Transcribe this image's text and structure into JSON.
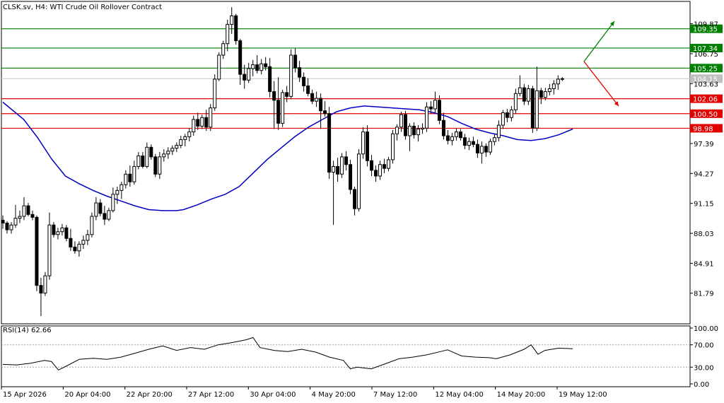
{
  "title": "CLSK.sv, H4:  WTI Crude Oil Rollover Contract",
  "colors": {
    "up_line": "#007f00",
    "down_line": "#e00000",
    "ma": "#0000c0",
    "candle": "#000000",
    "rsi": "#000000",
    "current_price_bg": "#c0c0c0"
  },
  "price_axis": {
    "min": 78.6,
    "max": 112.2,
    "ticks": [
      "109.87",
      "106.75",
      "103.63",
      "97.39",
      "94.27",
      "91.15",
      "88.03",
      "84.91",
      "81.79"
    ],
    "tick_values": [
      109.87,
      106.75,
      103.63,
      97.39,
      94.27,
      91.15,
      88.03,
      84.91,
      81.79
    ]
  },
  "levels": {
    "green": [
      {
        "label": "109.35",
        "value": 109.35
      },
      {
        "label": "107.34",
        "value": 107.34
      },
      {
        "label": "105.25",
        "value": 105.25
      }
    ],
    "red": [
      {
        "label": "102.06",
        "value": 102.06
      },
      {
        "label": "100.50",
        "value": 100.5
      },
      {
        "label": "98.98",
        "value": 98.98
      }
    ],
    "current": {
      "label": "104.15",
      "value": 104.15
    }
  },
  "rsi": {
    "label": "RSI(14) 62.66",
    "ticks": [
      "100.00",
      "70.00",
      "30.00",
      "0.00"
    ],
    "tick_values": [
      100,
      70,
      30,
      0
    ]
  },
  "x_labels": [
    "15 Apr 2026",
    "20 Apr 04:00",
    "22 Apr 20:00",
    "27 Apr 12:00",
    "30 Apr 04:00",
    "4 May 20:00",
    "7 May 12:00",
    "12 May 04:00",
    "14 May 20:00",
    "19 May 12:00"
  ],
  "chart_data": {
    "type": "candlestick",
    "symbol": "CLSK.sv",
    "timeframe": "H4",
    "candles": [
      [
        89.4,
        89.9,
        88.5,
        89.1
      ],
      [
        89.1,
        89.3,
        88.0,
        88.4
      ],
      [
        88.4,
        89.2,
        88.0,
        88.9
      ],
      [
        88.9,
        91.0,
        88.6,
        89.6
      ],
      [
        89.6,
        90.4,
        89.1,
        89.8
      ],
      [
        89.8,
        91.8,
        89.4,
        90.9
      ],
      [
        90.9,
        91.2,
        89.8,
        90.0
      ],
      [
        90.0,
        90.4,
        89.4,
        89.7
      ],
      [
        89.7,
        89.9,
        82.0,
        82.6
      ],
      [
        82.6,
        83.4,
        79.4,
        81.8
      ],
      [
        81.8,
        84.0,
        81.5,
        83.6
      ],
      [
        83.6,
        90.2,
        83.2,
        88.9
      ],
      [
        88.9,
        89.2,
        87.6,
        87.9
      ],
      [
        87.9,
        88.6,
        87.4,
        88.2
      ],
      [
        88.2,
        89.0,
        87.8,
        88.6
      ],
      [
        88.6,
        88.9,
        87.2,
        87.5
      ],
      [
        87.5,
        88.5,
        86.2,
        86.6
      ],
      [
        86.6,
        87.2,
        85.9,
        86.2
      ],
      [
        86.2,
        87.2,
        85.6,
        86.9
      ],
      [
        86.9,
        87.8,
        86.4,
        87.3
      ],
      [
        87.3,
        88.4,
        86.8,
        87.9
      ],
      [
        87.9,
        90.2,
        87.6,
        89.8
      ],
      [
        89.8,
        91.8,
        89.4,
        91.2
      ],
      [
        91.2,
        91.6,
        89.8,
        90.1
      ],
      [
        90.1,
        90.9,
        88.9,
        89.5
      ],
      [
        89.5,
        90.7,
        89.3,
        90.4
      ],
      [
        90.4,
        92.8,
        90.2,
        92.1
      ],
      [
        92.1,
        92.9,
        91.1,
        92.5
      ],
      [
        92.5,
        93.4,
        91.6,
        93.1
      ],
      [
        93.1,
        94.6,
        92.7,
        94.2
      ],
      [
        94.2,
        95.1,
        92.9,
        93.4
      ],
      [
        93.4,
        95.6,
        93.1,
        95.0
      ],
      [
        95.0,
        96.5,
        94.7,
        96.1
      ],
      [
        96.1,
        96.5,
        94.8,
        95.0
      ],
      [
        95.0,
        97.5,
        94.8,
        97.0
      ],
      [
        97.0,
        97.3,
        95.7,
        96.0
      ],
      [
        96.0,
        96.3,
        93.9,
        94.2
      ],
      [
        94.2,
        96.5,
        93.7,
        96.0
      ],
      [
        96.0,
        96.8,
        95.5,
        96.3
      ],
      [
        96.3,
        97.0,
        95.8,
        96.6
      ],
      [
        96.6,
        97.2,
        96.2,
        96.9
      ],
      [
        96.9,
        97.5,
        96.5,
        97.2
      ],
      [
        97.2,
        98.2,
        96.9,
        97.8
      ],
      [
        97.8,
        98.4,
        97.1,
        98.1
      ],
      [
        98.1,
        99.0,
        97.6,
        98.6
      ],
      [
        98.6,
        100.3,
        98.2,
        99.9
      ],
      [
        99.9,
        100.6,
        98.8,
        99.2
      ],
      [
        99.2,
        100.4,
        98.9,
        100.1
      ],
      [
        100.1,
        100.9,
        98.7,
        99.1
      ],
      [
        99.1,
        101.5,
        98.7,
        101.1
      ],
      [
        101.1,
        104.6,
        100.8,
        104.1
      ],
      [
        104.1,
        106.9,
        103.9,
        106.6
      ],
      [
        106.6,
        108.1,
        106.2,
        107.8
      ],
      [
        107.8,
        110.3,
        107.0,
        109.8
      ],
      [
        109.8,
        111.6,
        108.8,
        110.7
      ],
      [
        110.7,
        110.9,
        107.7,
        108.1
      ],
      [
        108.1,
        108.3,
        103.5,
        104.6
      ],
      [
        104.6,
        105.6,
        103.1,
        104.0
      ],
      [
        104.0,
        105.8,
        103.7,
        105.2
      ],
      [
        105.2,
        106.1,
        104.4,
        105.6
      ],
      [
        105.6,
        106.6,
        104.7,
        105.0
      ],
      [
        105.0,
        106.2,
        104.6,
        105.7
      ],
      [
        105.7,
        106.4,
        105.0,
        105.4
      ],
      [
        105.4,
        106.3,
        102.2,
        102.8
      ],
      [
        102.8,
        103.9,
        98.9,
        101.9
      ],
      [
        101.9,
        104.3,
        98.8,
        99.5
      ],
      [
        99.5,
        103.0,
        99.1,
        102.7
      ],
      [
        102.7,
        103.4,
        101.7,
        102.3
      ],
      [
        102.3,
        107.2,
        102.0,
        106.6
      ],
      [
        106.6,
        107.3,
        104.8,
        105.3
      ],
      [
        105.3,
        106.0,
        103.8,
        104.3
      ],
      [
        104.3,
        104.8,
        102.8,
        103.4
      ],
      [
        103.4,
        104.2,
        102.3,
        102.6
      ],
      [
        102.6,
        103.0,
        101.5,
        101.8
      ],
      [
        101.8,
        102.8,
        101.2,
        102.1
      ],
      [
        102.1,
        102.6,
        98.9,
        100.8
      ],
      [
        100.8,
        101.8,
        100.2,
        100.5
      ],
      [
        100.5,
        101.2,
        93.7,
        94.4
      ],
      [
        94.4,
        95.6,
        88.9,
        95.0
      ],
      [
        95.0,
        95.9,
        93.4,
        94.2
      ],
      [
        94.2,
        96.4,
        93.8,
        96.0
      ],
      [
        96.0,
        96.6,
        94.6,
        95.2
      ],
      [
        95.2,
        95.7,
        92.1,
        92.6
      ],
      [
        92.6,
        92.9,
        89.9,
        90.6
      ],
      [
        90.6,
        96.8,
        90.3,
        96.3
      ],
      [
        96.3,
        99.1,
        95.8,
        98.6
      ],
      [
        98.6,
        99.3,
        95.0,
        95.6
      ],
      [
        95.6,
        96.2,
        94.0,
        94.6
      ],
      [
        94.6,
        95.1,
        93.4,
        94.0
      ],
      [
        94.0,
        95.6,
        93.6,
        95.2
      ],
      [
        95.2,
        95.8,
        94.3,
        94.8
      ],
      [
        94.8,
        96.0,
        94.5,
        95.7
      ],
      [
        95.7,
        98.8,
        95.3,
        98.4
      ],
      [
        98.4,
        99.4,
        97.7,
        99.1
      ],
      [
        99.1,
        100.7,
        98.6,
        100.4
      ],
      [
        100.4,
        100.8,
        97.8,
        98.2
      ],
      [
        98.2,
        99.5,
        96.6,
        99.2
      ],
      [
        99.2,
        99.6,
        97.9,
        98.3
      ],
      [
        98.3,
        99.3,
        97.6,
        98.9
      ],
      [
        98.9,
        99.5,
        98.4,
        99.0
      ],
      [
        99.0,
        101.7,
        98.6,
        101.2
      ],
      [
        101.2,
        101.8,
        100.5,
        101.0
      ],
      [
        101.0,
        102.8,
        100.6,
        101.9
      ],
      [
        101.9,
        102.4,
        99.4,
        99.8
      ],
      [
        99.8,
        100.6,
        97.8,
        98.2
      ],
      [
        98.2,
        98.8,
        97.3,
        97.7
      ],
      [
        97.7,
        98.5,
        97.2,
        98.1
      ],
      [
        98.1,
        99.0,
        97.7,
        98.6
      ],
      [
        98.6,
        98.9,
        97.7,
        98.0
      ],
      [
        98.0,
        98.4,
        96.8,
        97.2
      ],
      [
        97.2,
        98.0,
        96.7,
        97.6
      ],
      [
        97.6,
        98.1,
        97.0,
        97.3
      ],
      [
        97.3,
        97.8,
        95.9,
        96.4
      ],
      [
        96.4,
        97.6,
        95.3,
        97.1
      ],
      [
        97.1,
        97.4,
        96.0,
        96.5
      ],
      [
        96.5,
        97.9,
        96.2,
        97.6
      ],
      [
        97.6,
        98.4,
        97.2,
        98.0
      ],
      [
        98.0,
        99.8,
        97.6,
        99.3
      ],
      [
        99.3,
        100.9,
        98.9,
        100.6
      ],
      [
        100.6,
        101.0,
        99.6,
        100.1
      ],
      [
        100.1,
        101.3,
        99.7,
        100.9
      ],
      [
        100.9,
        103.1,
        100.5,
        102.6
      ],
      [
        102.6,
        104.5,
        102.3,
        103.2
      ],
      [
        103.2,
        103.6,
        101.4,
        101.8
      ],
      [
        101.8,
        103.5,
        101.4,
        103.1
      ],
      [
        103.1,
        103.4,
        98.5,
        99.0
      ],
      [
        99.0,
        105.4,
        98.7,
        102.9
      ],
      [
        102.9,
        103.2,
        101.5,
        102.2
      ],
      [
        102.2,
        103.2,
        101.9,
        102.8
      ],
      [
        102.8,
        103.6,
        102.4,
        103.1
      ],
      [
        103.1,
        104.0,
        102.5,
        103.6
      ],
      [
        103.6,
        104.5,
        103.0,
        104.1
      ],
      [
        104.1,
        104.3,
        103.9,
        104.15
      ]
    ],
    "ma_curve": [
      [
        0,
        101.7
      ],
      [
        0.03,
        99.9
      ],
      [
        0.05,
        98.0
      ],
      [
        0.07,
        95.8
      ],
      [
        0.09,
        94.0
      ],
      [
        0.11,
        93.2
      ],
      [
        0.13,
        92.5
      ],
      [
        0.15,
        91.9
      ],
      [
        0.17,
        91.4
      ],
      [
        0.19,
        90.9
      ],
      [
        0.21,
        90.5
      ],
      [
        0.23,
        90.4
      ],
      [
        0.25,
        90.4
      ],
      [
        0.26,
        90.5
      ],
      [
        0.28,
        91.0
      ],
      [
        0.3,
        91.6
      ],
      [
        0.32,
        92.1
      ],
      [
        0.34,
        92.9
      ],
      [
        0.36,
        94.3
      ],
      [
        0.38,
        95.7
      ],
      [
        0.4,
        96.9
      ],
      [
        0.42,
        98.1
      ],
      [
        0.44,
        99.1
      ],
      [
        0.46,
        99.9
      ],
      [
        0.48,
        100.7
      ],
      [
        0.5,
        101.1
      ],
      [
        0.52,
        101.3
      ],
      [
        0.54,
        101.2
      ],
      [
        0.56,
        101.1
      ],
      [
        0.58,
        101.0
      ],
      [
        0.6,
        100.9
      ],
      [
        0.62,
        100.6
      ],
      [
        0.64,
        100.2
      ],
      [
        0.66,
        99.5
      ],
      [
        0.68,
        98.9
      ],
      [
        0.7,
        98.5
      ],
      [
        0.72,
        98.2
      ],
      [
        0.74,
        97.8
      ],
      [
        0.76,
        97.7
      ],
      [
        0.78,
        97.9
      ],
      [
        0.8,
        98.3
      ],
      [
        0.82,
        98.9
      ]
    ],
    "rsi_curve": [
      [
        0,
        35
      ],
      [
        0.02,
        34
      ],
      [
        0.04,
        37
      ],
      [
        0.06,
        42
      ],
      [
        0.07,
        40
      ],
      [
        0.08,
        25
      ],
      [
        0.09,
        31
      ],
      [
        0.11,
        44
      ],
      [
        0.13,
        46
      ],
      [
        0.15,
        44
      ],
      [
        0.17,
        48
      ],
      [
        0.19,
        55
      ],
      [
        0.21,
        62
      ],
      [
        0.23,
        68
      ],
      [
        0.25,
        60
      ],
      [
        0.27,
        65
      ],
      [
        0.29,
        62
      ],
      [
        0.31,
        70
      ],
      [
        0.33,
        74
      ],
      [
        0.35,
        79
      ],
      [
        0.36,
        83
      ],
      [
        0.37,
        65
      ],
      [
        0.39,
        60
      ],
      [
        0.41,
        58
      ],
      [
        0.43,
        62
      ],
      [
        0.45,
        57
      ],
      [
        0.47,
        48
      ],
      [
        0.49,
        42
      ],
      [
        0.5,
        27
      ],
      [
        0.51,
        30
      ],
      [
        0.53,
        27
      ],
      [
        0.55,
        36
      ],
      [
        0.57,
        45
      ],
      [
        0.59,
        48
      ],
      [
        0.61,
        52
      ],
      [
        0.63,
        58
      ],
      [
        0.64,
        61
      ],
      [
        0.66,
        50
      ],
      [
        0.68,
        48
      ],
      [
        0.7,
        47
      ],
      [
        0.71,
        45
      ],
      [
        0.73,
        52
      ],
      [
        0.75,
        62
      ],
      [
        0.76,
        70
      ],
      [
        0.77,
        53
      ],
      [
        0.78,
        60
      ],
      [
        0.8,
        64
      ],
      [
        0.82,
        63
      ]
    ]
  }
}
